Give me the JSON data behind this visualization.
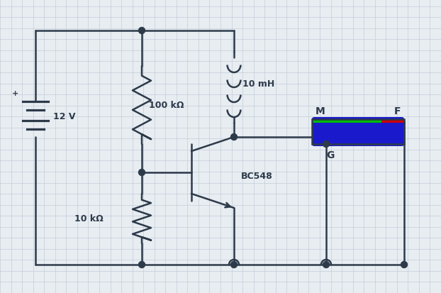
{
  "bg_color": "#e8edf2",
  "grid_color": "#c5cdd8",
  "line_color": "#2d3a4a",
  "line_width": 1.8,
  "battery_label": "12 V",
  "res1_label": "100 kΩ",
  "res2_label": "10 kΩ",
  "inductor_label": "10 mH",
  "transistor_label": "BC548",
  "buzzer_label_M": "M",
  "buzzer_label_F": "F",
  "buzzer_label_G": "G",
  "xlim": [
    0,
    62.2
  ],
  "ylim": [
    0,
    41.4
  ]
}
